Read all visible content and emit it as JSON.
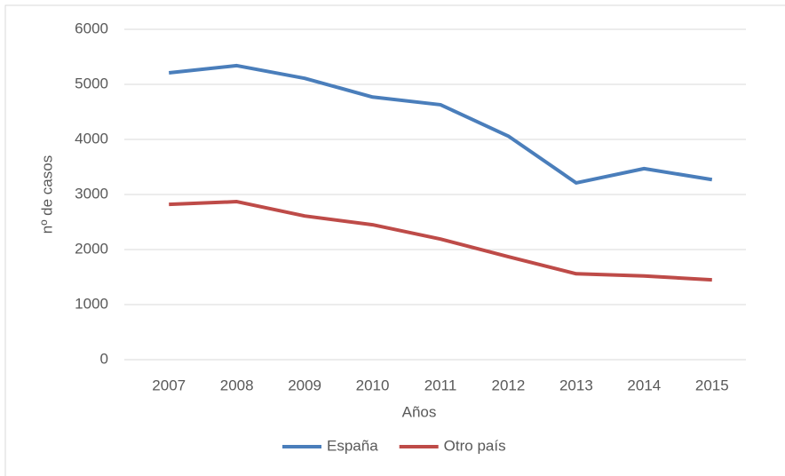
{
  "chart_data": {
    "type": "line",
    "x_label": "Años",
    "y_label": "nº de casos",
    "categories": [
      "2007",
      "2008",
      "2009",
      "2010",
      "2011",
      "2012",
      "2013",
      "2014",
      "2015"
    ],
    "series": [
      {
        "name": "España",
        "color": "#4a7ebb",
        "values": [
          5210,
          5340,
          5110,
          4770,
          4630,
          4060,
          3210,
          3470,
          3270
        ]
      },
      {
        "name": "Otro país",
        "color": "#be4b48",
        "values": [
          2820,
          2870,
          2610,
          2450,
          2190,
          1870,
          1560,
          1520,
          1450
        ]
      }
    ],
    "ylim": [
      0,
      6000
    ],
    "yticks": [
      0,
      1000,
      2000,
      3000,
      4000,
      5000,
      6000
    ],
    "grid": true,
    "legend": "bottom"
  }
}
